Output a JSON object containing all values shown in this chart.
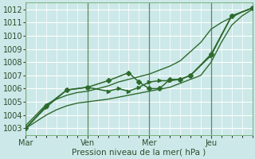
{
  "background_color": "#cce8e8",
  "grid_color": "#ffffff",
  "line_color": "#2d6a2d",
  "xlabel": "Pression niveau de la mer( hPa )",
  "ylim": [
    1002.5,
    1012.5
  ],
  "yticks": [
    1003,
    1004,
    1005,
    1006,
    1007,
    1008,
    1009,
    1010,
    1011,
    1012
  ],
  "day_labels": [
    "Mar",
    "Ven",
    "Mer",
    "Jeu"
  ],
  "day_positions": [
    0,
    36,
    72,
    108
  ],
  "xlim": [
    0,
    132
  ],
  "series": [
    {
      "x": [
        0,
        6,
        12,
        18,
        24,
        30,
        36,
        42,
        48,
        54,
        60,
        66,
        72,
        78,
        84,
        90,
        96,
        102,
        108,
        114,
        120,
        126,
        132
      ],
      "y": [
        1003.0,
        1003.5,
        1004.0,
        1004.4,
        1004.7,
        1004.9,
        1005.0,
        1005.1,
        1005.2,
        1005.35,
        1005.5,
        1005.65,
        1005.8,
        1005.95,
        1006.1,
        1006.4,
        1006.7,
        1007.0,
        1008.0,
        1009.5,
        1010.8,
        1011.5,
        1012.0
      ],
      "marker": null,
      "linewidth": 1.0
    },
    {
      "x": [
        0,
        6,
        12,
        18,
        24,
        30,
        36,
        42,
        48,
        54,
        60,
        66,
        72,
        78,
        84,
        90,
        96,
        102,
        108,
        114,
        120,
        126,
        132
      ],
      "y": [
        1003.2,
        1004.0,
        1004.8,
        1005.2,
        1005.5,
        1005.7,
        1005.8,
        1006.0,
        1006.2,
        1006.5,
        1006.7,
        1006.9,
        1007.1,
        1007.4,
        1007.7,
        1008.1,
        1008.8,
        1009.5,
        1010.5,
        1011.0,
        1011.4,
        1011.8,
        1012.1
      ],
      "marker": null,
      "linewidth": 1.0
    },
    {
      "x": [
        0,
        12,
        24,
        36,
        48,
        60,
        66,
        72,
        78,
        84,
        90,
        96,
        108,
        120,
        132
      ],
      "y": [
        1003.0,
        1004.7,
        1005.9,
        1006.1,
        1006.6,
        1007.2,
        1006.5,
        1006.0,
        1006.0,
        1006.7,
        1006.7,
        1007.0,
        1008.6,
        1011.5,
        1012.1
      ],
      "marker": "D",
      "linewidth": 1.1,
      "markersize": 3
    },
    {
      "x": [
        0,
        12,
        24,
        36,
        48,
        54,
        60,
        66,
        72,
        78,
        84,
        90,
        96,
        108,
        120,
        132
      ],
      "y": [
        1003.0,
        1004.6,
        1005.9,
        1006.1,
        1005.8,
        1006.0,
        1005.8,
        1006.1,
        1006.5,
        1006.6,
        1006.6,
        1006.7,
        1007.0,
        1008.5,
        1011.5,
        1012.1
      ],
      "marker": ">",
      "linewidth": 1.1,
      "markersize": 3
    }
  ]
}
